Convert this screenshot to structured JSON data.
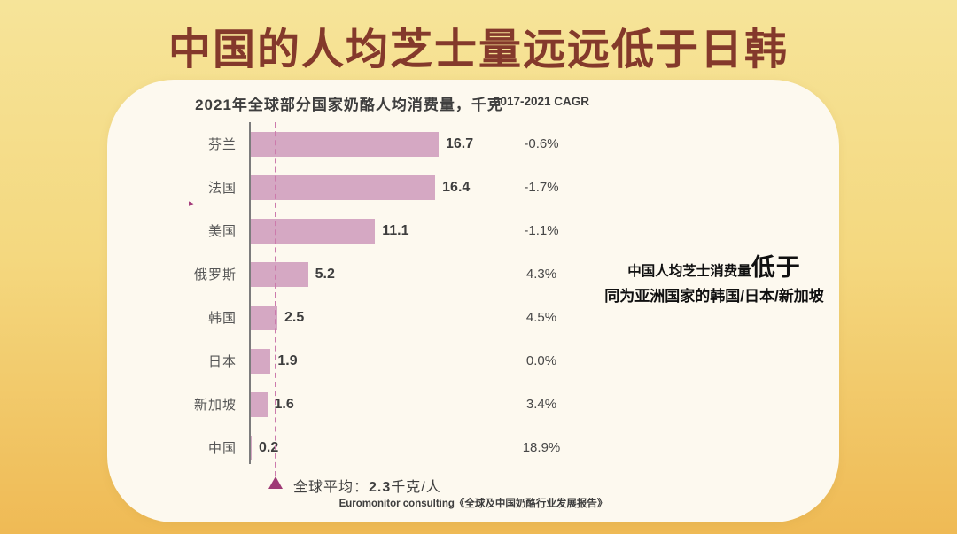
{
  "page": {
    "title": "中国的人均芝士量远远低于日韩"
  },
  "chart_data": {
    "type": "bar",
    "orientation": "horizontal",
    "title": "2021年全球部分国家奶酪人均消费量，千克",
    "cagr_header": "2017-2021 CAGR",
    "categories": [
      "芬兰",
      "法国",
      "美国",
      "俄罗斯",
      "韩国",
      "日本",
      "新加坡",
      "中国"
    ],
    "values": [
      16.7,
      16.4,
      11.1,
      5.2,
      2.5,
      1.9,
      1.6,
      0.2
    ],
    "value_labels": [
      "16.7",
      "16.4",
      "11.1",
      "5.2",
      "2.5",
      "1.9",
      "1.6",
      "0.2"
    ],
    "cagr": [
      "-0.6%",
      "-1.7%",
      "-1.1%",
      "4.3%",
      "4.5%",
      "0.0%",
      "3.4%",
      "18.9%"
    ],
    "average": {
      "value": 2.3,
      "label_prefix": "全球平均：",
      "label_value": "2.3",
      "label_suffix": "千克/人"
    },
    "legend_position": "none",
    "grid": false,
    "colors": {
      "bar": "#D5A8C3",
      "average_line": "#CC7BAC",
      "average_marker": "#9E3A75",
      "title_text": "#84392B",
      "background_top": "#F6E499",
      "background_bottom": "#EFBA55",
      "card_background": "#FDF9EF"
    }
  },
  "annotation": {
    "line1_normal": "中国人均芝士消费量",
    "line1_large": "低于",
    "line2": "同为亚洲国家的韩国/日本/新加坡"
  },
  "source": "Euromonitor consulting《全球及中国奶酪行业发展报告》"
}
